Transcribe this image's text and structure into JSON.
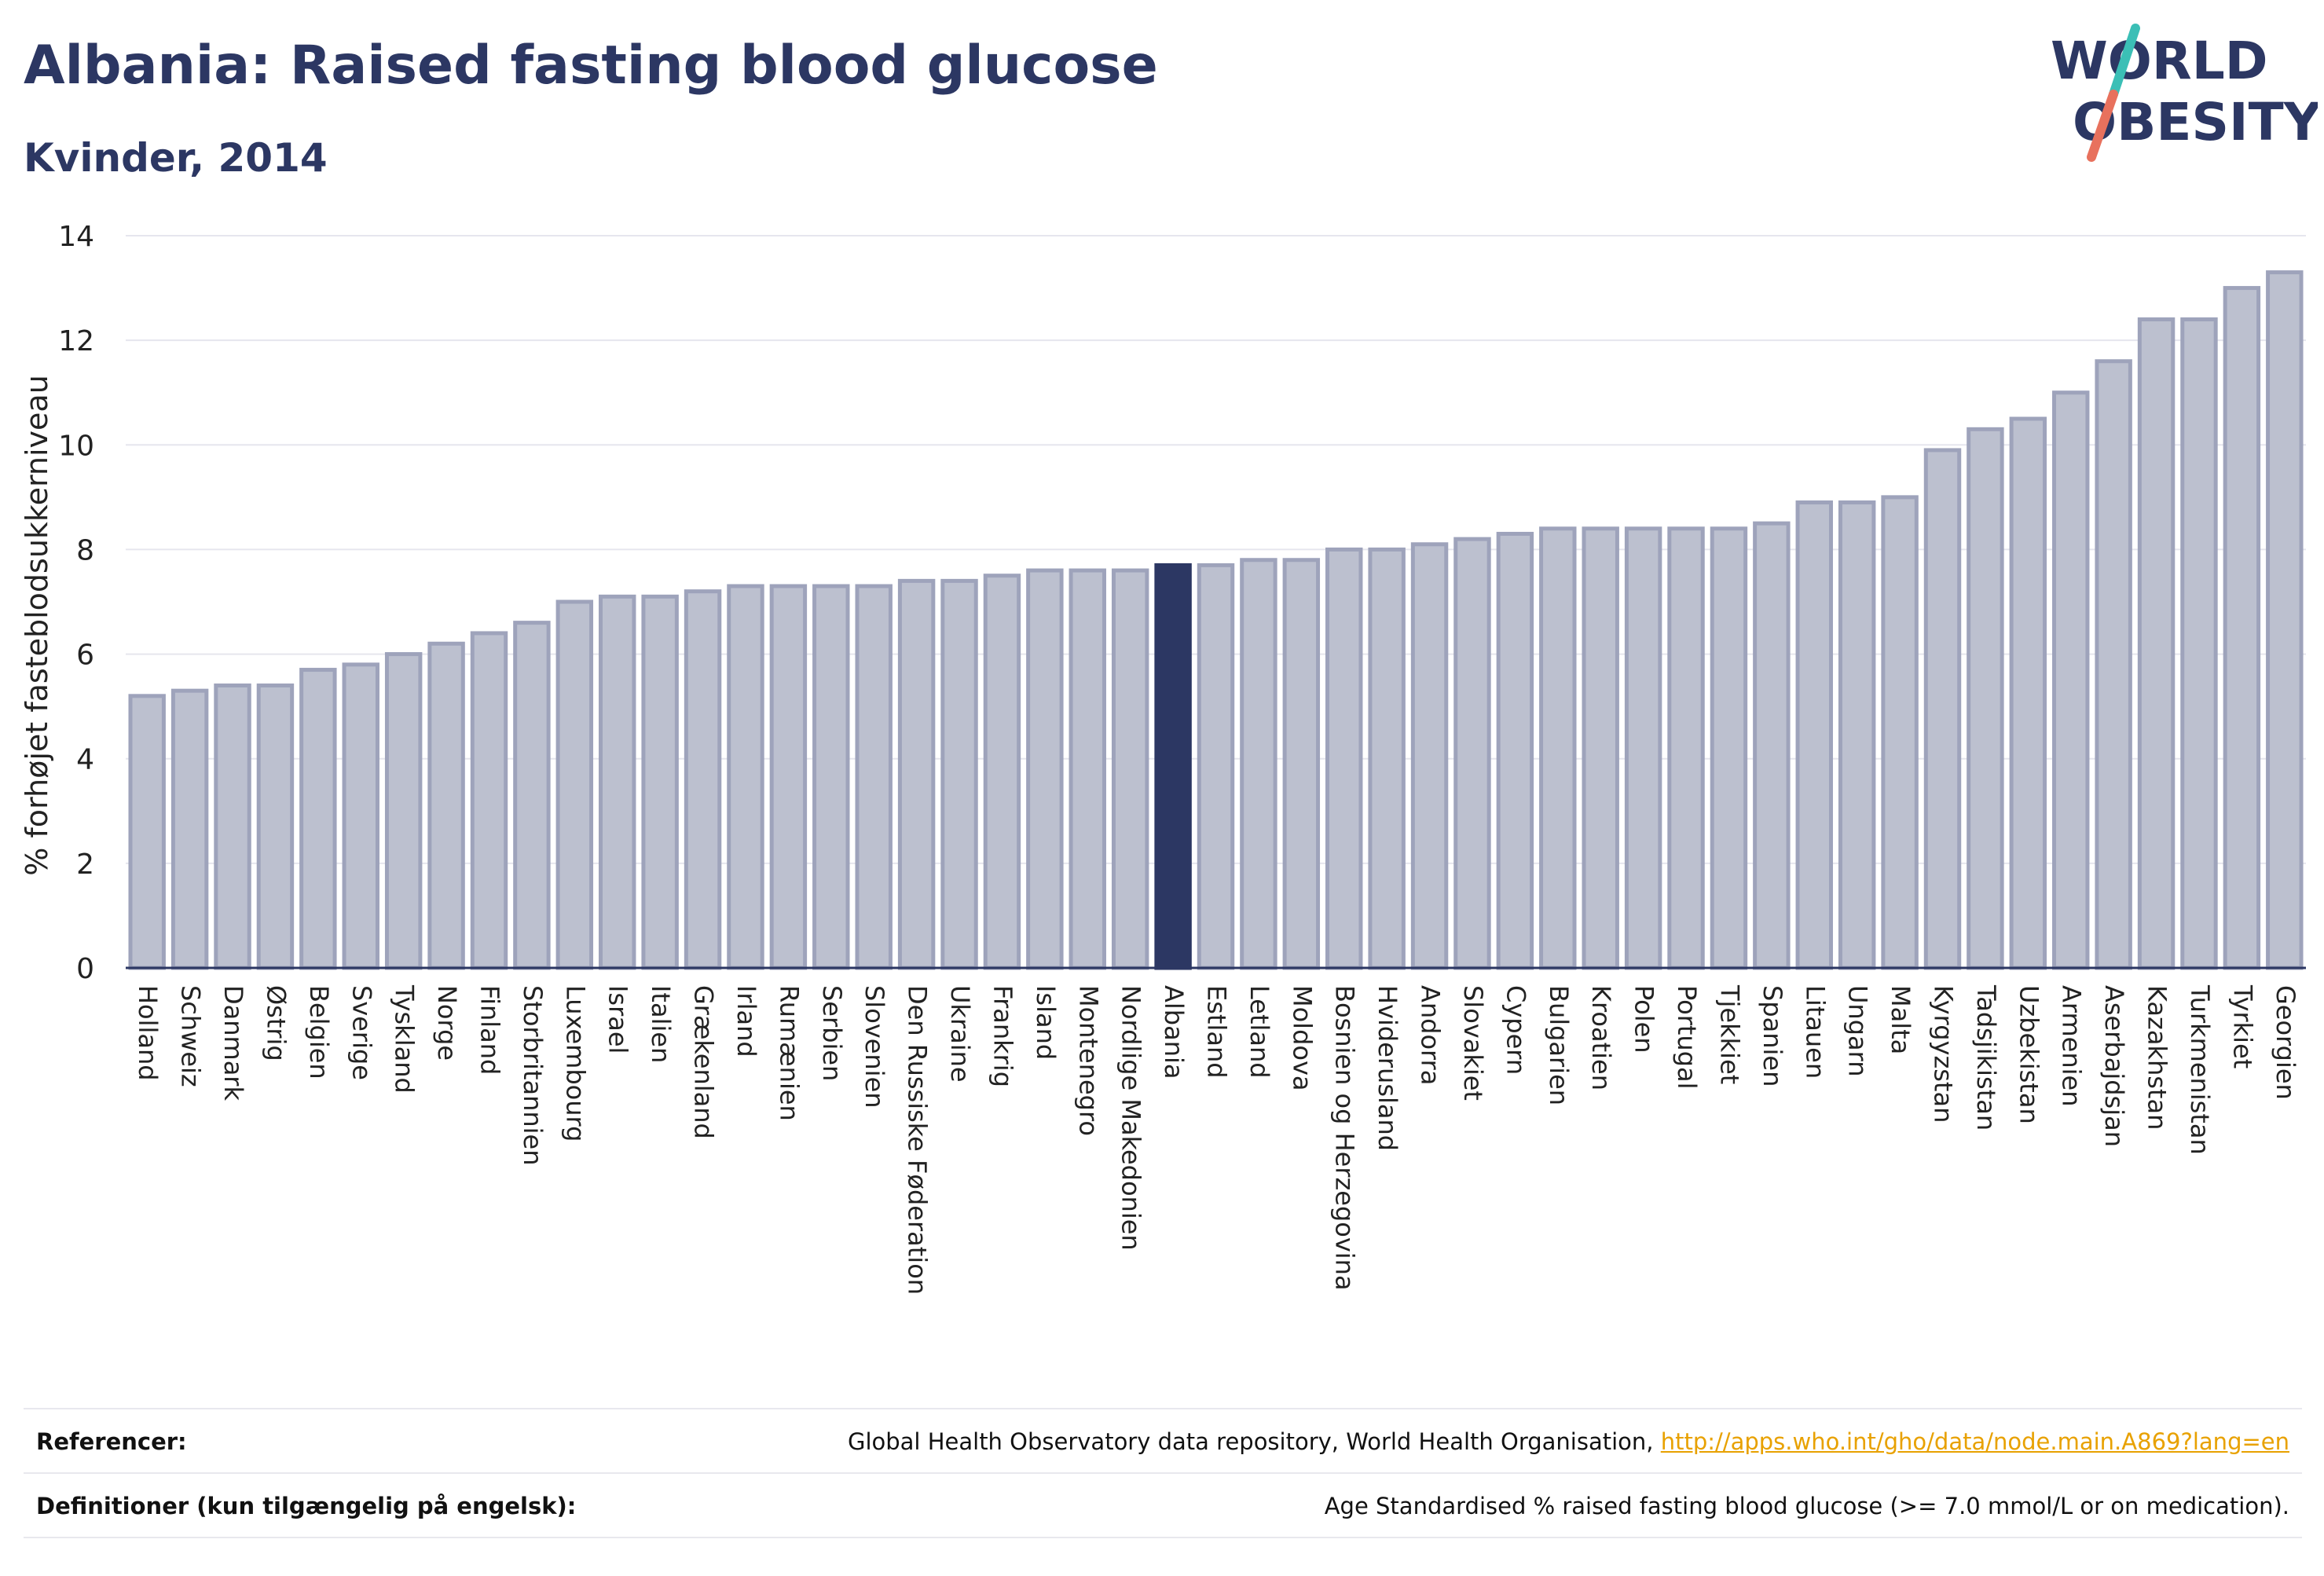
{
  "header": {
    "title": "Albania: Raised fasting blood glucose",
    "subtitle": "Kvinder, 2014"
  },
  "logo": {
    "line1": "WORLD",
    "line2": "OBESITY",
    "colors": {
      "text": "#2c3763",
      "slash_teal": "#3bbfb6",
      "slash_coral": "#e8715d"
    }
  },
  "colors": {
    "bar_fill": "#bcc0cf",
    "bar_stroke": "#9ea3bb",
    "highlight_fill": "#2c3763",
    "axis_text": "#222222",
    "grid": "#e6e6ee",
    "link": "#e8a100"
  },
  "chart_data": {
    "type": "bar",
    "ylabel": "% forhøjet fasteblodsukkerniveau",
    "ylim": [
      0,
      14
    ],
    "yticks": [
      0,
      2,
      4,
      6,
      8,
      10,
      12,
      14
    ],
    "grid": true,
    "highlight": "Albania",
    "categories": [
      "Holland",
      "Schweiz",
      "Danmark",
      "Østrig",
      "Belgien",
      "Sverige",
      "Tyskland",
      "Norge",
      "Finland",
      "Storbritannien",
      "Luxembourg",
      "Israel",
      "Italien",
      "Grækenland",
      "Irland",
      "Rumænien",
      "Serbien",
      "Slovenien",
      "Den Russiske Føderation",
      "Ukraine",
      "Frankrig",
      "Island",
      "Montenegro",
      "Nordlige Makedonien",
      "Albania",
      "Estland",
      "Letland",
      "Moldova",
      "Bosnien og Herzegovina",
      "Hviderusland",
      "Andorra",
      "Slovakiet",
      "Cypern",
      "Bulgarien",
      "Kroatien",
      "Polen",
      "Portugal",
      "Tjekkiet",
      "Spanien",
      "Litauen",
      "Ungarn",
      "Malta",
      "Kyrgyzstan",
      "Tadsjikistan",
      "Uzbekistan",
      "Armenien",
      "Aserbajdsjan",
      "Kazakhstan",
      "Turkmenistan",
      "Tyrkiet",
      "Georgien"
    ],
    "values": [
      5.2,
      5.3,
      5.4,
      5.4,
      5.7,
      5.8,
      6.0,
      6.2,
      6.4,
      6.6,
      7.0,
      7.1,
      7.1,
      7.2,
      7.3,
      7.3,
      7.3,
      7.3,
      7.4,
      7.4,
      7.5,
      7.6,
      7.6,
      7.6,
      7.7,
      7.7,
      7.8,
      7.8,
      8.0,
      8.0,
      8.1,
      8.2,
      8.3,
      8.4,
      8.4,
      8.4,
      8.4,
      8.4,
      8.5,
      8.9,
      8.9,
      9.0,
      9.9,
      10.3,
      10.5,
      11.0,
      11.6,
      12.4,
      12.4,
      13.0,
      13.3
    ]
  },
  "footer": {
    "references_label": "Referencer:",
    "references_text": "Global Health Observatory data repository, World Health Organisation, ",
    "references_link": "http://apps.who.int/gho/data/node.main.A869?lang=en",
    "definitions_label": "Definitioner (kun tilgængelig på engelsk):",
    "definitions_text": "Age Standardised % raised fasting blood glucose (>= 7.0 mmol/L or on medication)."
  }
}
